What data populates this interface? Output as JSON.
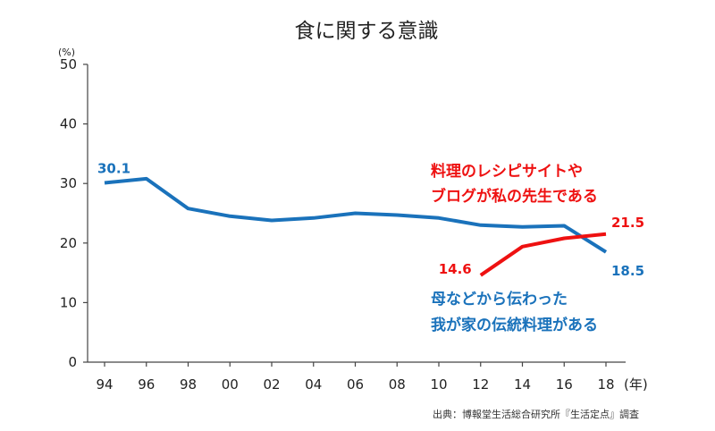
{
  "chart_data": {
    "type": "line",
    "title": "食に関する意識",
    "y_unit": "(%)",
    "x_unit": "(年)",
    "ylim": [
      0,
      50
    ],
    "yticks": [
      0,
      10,
      20,
      30,
      40,
      50
    ],
    "grid": false,
    "x": [
      "94",
      "96",
      "98",
      "00",
      "02",
      "04",
      "06",
      "08",
      "10",
      "12",
      "14",
      "16",
      "18"
    ],
    "series": [
      {
        "name_lines": [
          "母などから伝わった",
          "我が家の伝統料理がある"
        ],
        "color": "#1a72bb",
        "values": [
          30.1,
          30.8,
          25.8,
          24.5,
          23.8,
          24.2,
          25.0,
          24.7,
          24.2,
          23.0,
          22.7,
          22.9,
          18.5
        ],
        "first_label": "30.1",
        "last_label": "18.5"
      },
      {
        "name_lines": [
          "料理のレシピサイトや",
          "ブログが私の先生である"
        ],
        "color": "#ee1111",
        "values": [
          null,
          null,
          null,
          null,
          null,
          null,
          null,
          null,
          null,
          14.6,
          19.4,
          20.8,
          21.5
        ],
        "first_label": "14.6",
        "last_label": "21.5"
      }
    ],
    "source": "出典：博報堂生活総合研究所『生活定点』調査"
  }
}
